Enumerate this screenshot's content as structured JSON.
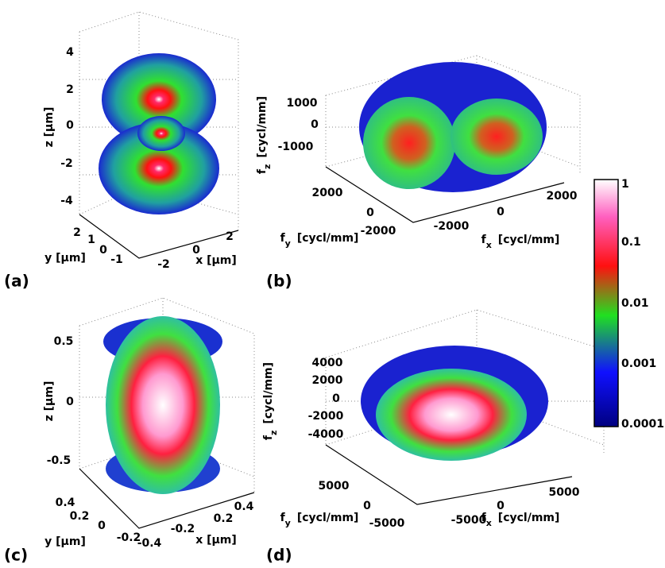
{
  "panels": [
    {
      "label": "(a)",
      "x_axis": {
        "label": "x [μm]",
        "ticks": [
          -2,
          0,
          2
        ]
      },
      "y_axis": {
        "label": "y [μm]",
        "ticks": [
          2,
          1,
          0,
          -1
        ]
      },
      "z_axis": {
        "label": "z [μm]",
        "ticks": [
          4,
          2,
          0,
          -2,
          -4
        ]
      }
    },
    {
      "label": "(b)",
      "x_axis": {
        "label": {
          "symbol": "f",
          "subscript": "x",
          "unit": "[cycl/mm]"
        },
        "ticks": [
          -2000,
          0,
          2000
        ]
      },
      "y_axis": {
        "label": {
          "symbol": "f",
          "subscript": "y",
          "unit": "[cycl/mm]"
        },
        "ticks": [
          2000,
          0,
          -2000
        ]
      },
      "z_axis": {
        "label": {
          "symbol": "f",
          "subscript": "z",
          "unit": "[cycl/mm]"
        },
        "ticks": [
          1000,
          0,
          -1000
        ]
      }
    },
    {
      "label": "(c)",
      "x_axis": {
        "label": "x [μm]",
        "ticks": [
          -0.4,
          -0.2,
          0.2,
          0.4
        ]
      },
      "y_axis": {
        "label": "y [μm]",
        "ticks": [
          0.4,
          0.2,
          0,
          -0.2
        ]
      },
      "z_axis": {
        "label": "z [μm]",
        "ticks": [
          0.5,
          0,
          -0.5
        ]
      }
    },
    {
      "label": "(d)",
      "x_axis": {
        "label": {
          "symbol": "f",
          "subscript": "x",
          "unit": "[cycl/mm]"
        },
        "ticks": [
          -5000,
          0,
          5000
        ]
      },
      "y_axis": {
        "label": {
          "symbol": "f",
          "subscript": "y",
          "unit": "[cycl/mm]"
        },
        "ticks": [
          5000,
          0,
          -5000
        ]
      },
      "z_axis": {
        "label": {
          "symbol": "f",
          "subscript": "z",
          "unit": "[cycl/mm]"
        },
        "ticks": [
          4000,
          2000,
          0,
          -2000,
          -4000
        ]
      }
    }
  ],
  "colorbar": {
    "ticks": [
      1,
      0.1,
      0.01,
      0.001,
      0.0001
    ]
  }
}
